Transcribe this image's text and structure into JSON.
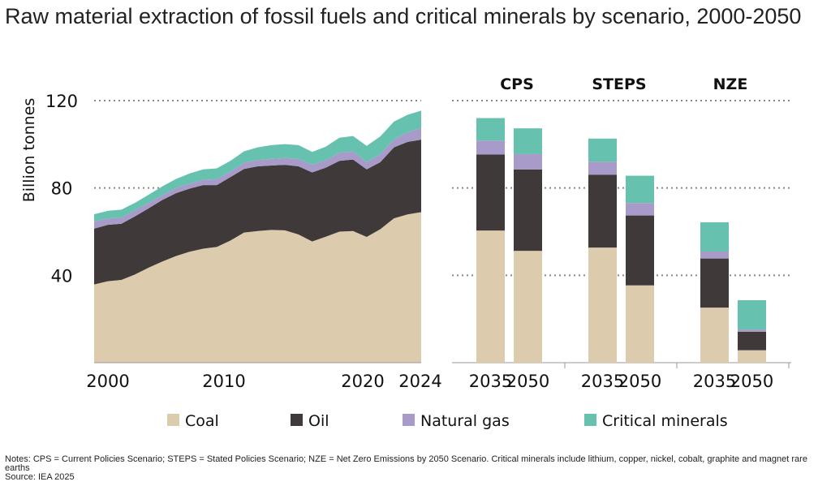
{
  "chart_data": [
    {
      "type": "area",
      "title": "Raw material extraction of fossil fuels and critical minerals by scenario, 2000-2050",
      "ylabel": "Billion tonnes",
      "ylim": [
        0,
        120
      ],
      "yticks": [
        "40",
        "80",
        "120"
      ],
      "xticks": [
        "2000",
        "2010",
        "2020",
        "2024"
      ],
      "grid": true,
      "stacked": true,
      "x": [
        2000,
        2001,
        2002,
        2003,
        2004,
        2005,
        2006,
        2007,
        2008,
        2009,
        2010,
        2011,
        2012,
        2013,
        2014,
        2015,
        2016,
        2017,
        2018,
        2019,
        2020,
        2021,
        2022,
        2023,
        2024
      ],
      "series": [
        {
          "name": "Coal",
          "color": "#dccbad",
          "values": [
            35.8,
            37.3,
            37.9,
            40.4,
            43.5,
            46.3,
            48.8,
            50.8,
            52.2,
            53.0,
            55.9,
            59.6,
            60.3,
            60.8,
            60.6,
            58.7,
            55.5,
            57.7,
            60.0,
            60.3,
            57.6,
            61.1,
            66.1,
            67.9,
            68.9
          ]
        },
        {
          "name": "Oil",
          "color": "#3f3a39",
          "values": [
            25.6,
            25.8,
            25.7,
            26.6,
            27.2,
            28.2,
            28.8,
            28.9,
            29.1,
            28.3,
            29.1,
            29.1,
            29.6,
            29.5,
            30.0,
            31.2,
            31.6,
            31.6,
            32.4,
            32.7,
            30.9,
            30.7,
            32.5,
            33.2,
            33.2
          ]
        },
        {
          "name": "Natural gas",
          "color": "#a99bc9",
          "values": [
            3.2,
            3.0,
            2.8,
            2.8,
            2.5,
            2.1,
            2.4,
            2.2,
            2.5,
            2.7,
            2.5,
            2.9,
            2.9,
            3.0,
            3.1,
            3.4,
            3.5,
            3.5,
            3.7,
            3.8,
            3.3,
            3.7,
            3.7,
            4.3,
            5.5
          ]
        },
        {
          "name": "Critical minerals",
          "color": "#66c2ae",
          "values": [
            3.4,
            3.4,
            3.7,
            3.4,
            3.7,
            4.1,
            4.1,
            4.7,
            4.7,
            5.0,
            4.9,
            5.2,
            5.8,
            6.3,
            6.4,
            6.3,
            5.9,
            6.1,
            6.9,
            7.0,
            7.5,
            8.1,
            8.1,
            8.1,
            7.8
          ]
        }
      ]
    },
    {
      "type": "bar",
      "stacked": true,
      "ylim": [
        0,
        120
      ],
      "grid": true,
      "groups": [
        {
          "label": "CPS",
          "categories": [
            "2035",
            "2050"
          ]
        },
        {
          "label": "STEPS",
          "categories": [
            "2035",
            "2050"
          ]
        },
        {
          "label": "NZE",
          "categories": [
            "2035",
            "2050"
          ]
        }
      ],
      "series": [
        {
          "name": "Coal",
          "color": "#dccbad",
          "values": [
            60.5,
            51.2,
            52.7,
            35.4,
            25.2,
            5.7
          ]
        },
        {
          "name": "Oil",
          "color": "#3f3a39",
          "values": [
            34.8,
            37.3,
            33.4,
            32.0,
            22.5,
            8.5
          ]
        },
        {
          "name": "Natural gas",
          "color": "#a99bc9",
          "values": [
            6.4,
            7.0,
            5.9,
            5.7,
            3.2,
            1.0
          ]
        },
        {
          "name": "Critical minerals",
          "color": "#66c2ae",
          "values": [
            10.3,
            11.8,
            10.6,
            12.5,
            13.4,
            13.4
          ]
        }
      ]
    }
  ],
  "legend": {
    "placement": "bottom",
    "items": [
      "Coal",
      "Oil",
      "Natural gas",
      "Critical minerals"
    ]
  },
  "notes": "Notes: CPS = Current Policies Scenario; STEPS = Stated Policies Scenario; NZE = Net Zero Emissions by 2050 Scenario. Critical minerals include lithium, copper, nickel, cobalt, graphite and magnet rare earths",
  "source": "Source: IEA 2025"
}
